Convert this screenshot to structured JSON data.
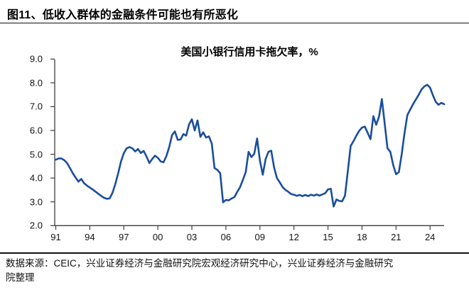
{
  "header": {
    "title": "图11、低收入群体的金融条件可能也有所恶化"
  },
  "chart": {
    "title": "美国小银行信用卡拖欠率，%"
  },
  "footer": {
    "source_line1": "数据来源：CEIC，兴业证券经济与金融研究院宏观经济研究中心，兴业证券经济与金融研究",
    "source_line2": "院整理"
  },
  "chart_data": {
    "type": "line",
    "title": "美国小银行信用卡拖欠率，%",
    "xlabel": "",
    "ylabel": "",
    "ylim": [
      2.0,
      9.0
    ],
    "xlim": [
      1991,
      2025.5
    ],
    "grid": false,
    "legend": "none",
    "line_color": "#1b4e9b",
    "axis_color": "#3d3d3d",
    "y_ticks": [
      "9.0",
      "8.0",
      "7.0",
      "6.0",
      "5.0",
      "4.0",
      "3.0",
      "2.0"
    ],
    "y_tick_values": [
      9,
      8,
      7,
      6,
      5,
      4,
      3,
      2
    ],
    "x_ticks": [
      "91",
      "94",
      "97",
      "00",
      "03",
      "06",
      "09",
      "12",
      "15",
      "18",
      "21",
      "24"
    ],
    "x_tick_years": [
      1991,
      1994,
      1997,
      2000,
      2003,
      2006,
      2009,
      2012,
      2015,
      2018,
      2021,
      2024
    ],
    "series": [
      {
        "name": "美国小银行信用卡拖欠率",
        "unit": "%",
        "frequency": "quarterly",
        "start_year": 1991,
        "step_years": 0.25,
        "values": [
          4.77,
          4.82,
          4.82,
          4.75,
          4.62,
          4.42,
          4.2,
          4.02,
          3.85,
          3.96,
          3.78,
          3.68,
          3.6,
          3.52,
          3.43,
          3.34,
          3.25,
          3.17,
          3.13,
          3.14,
          3.38,
          3.75,
          4.2,
          4.7,
          5.05,
          5.25,
          5.3,
          5.25,
          5.12,
          5.22,
          5.05,
          5.14,
          4.9,
          4.63,
          4.8,
          4.94,
          4.85,
          4.7,
          4.66,
          4.92,
          5.3,
          5.8,
          5.96,
          5.6,
          5.62,
          5.85,
          5.78,
          6.25,
          6.47,
          6.0,
          6.42,
          5.73,
          5.92,
          5.7,
          5.75,
          5.45,
          4.42,
          4.34,
          4.2,
          2.98,
          3.08,
          3.06,
          3.14,
          3.2,
          3.42,
          3.62,
          3.92,
          4.25,
          5.1,
          4.88,
          5.02,
          5.66,
          4.73,
          4.14,
          4.8,
          5.1,
          5.15,
          4.45,
          4.0,
          3.82,
          3.62,
          3.5,
          3.42,
          3.33,
          3.3,
          3.25,
          3.29,
          3.24,
          3.29,
          3.24,
          3.3,
          3.26,
          3.31,
          3.26,
          3.31,
          3.36,
          3.52,
          3.55,
          2.8,
          3.1,
          3.04,
          3.02,
          3.26,
          4.3,
          5.35,
          5.55,
          5.78,
          5.98,
          6.12,
          6.16,
          5.9,
          5.63,
          6.6,
          6.24,
          6.58,
          7.32,
          6.3,
          5.25,
          5.1,
          4.55,
          4.16,
          4.25,
          5.0,
          5.9,
          6.65,
          6.88,
          7.1,
          7.3,
          7.5,
          7.72,
          7.85,
          7.92,
          7.8,
          7.48,
          7.2,
          7.08,
          7.16,
          7.1
        ]
      }
    ]
  }
}
